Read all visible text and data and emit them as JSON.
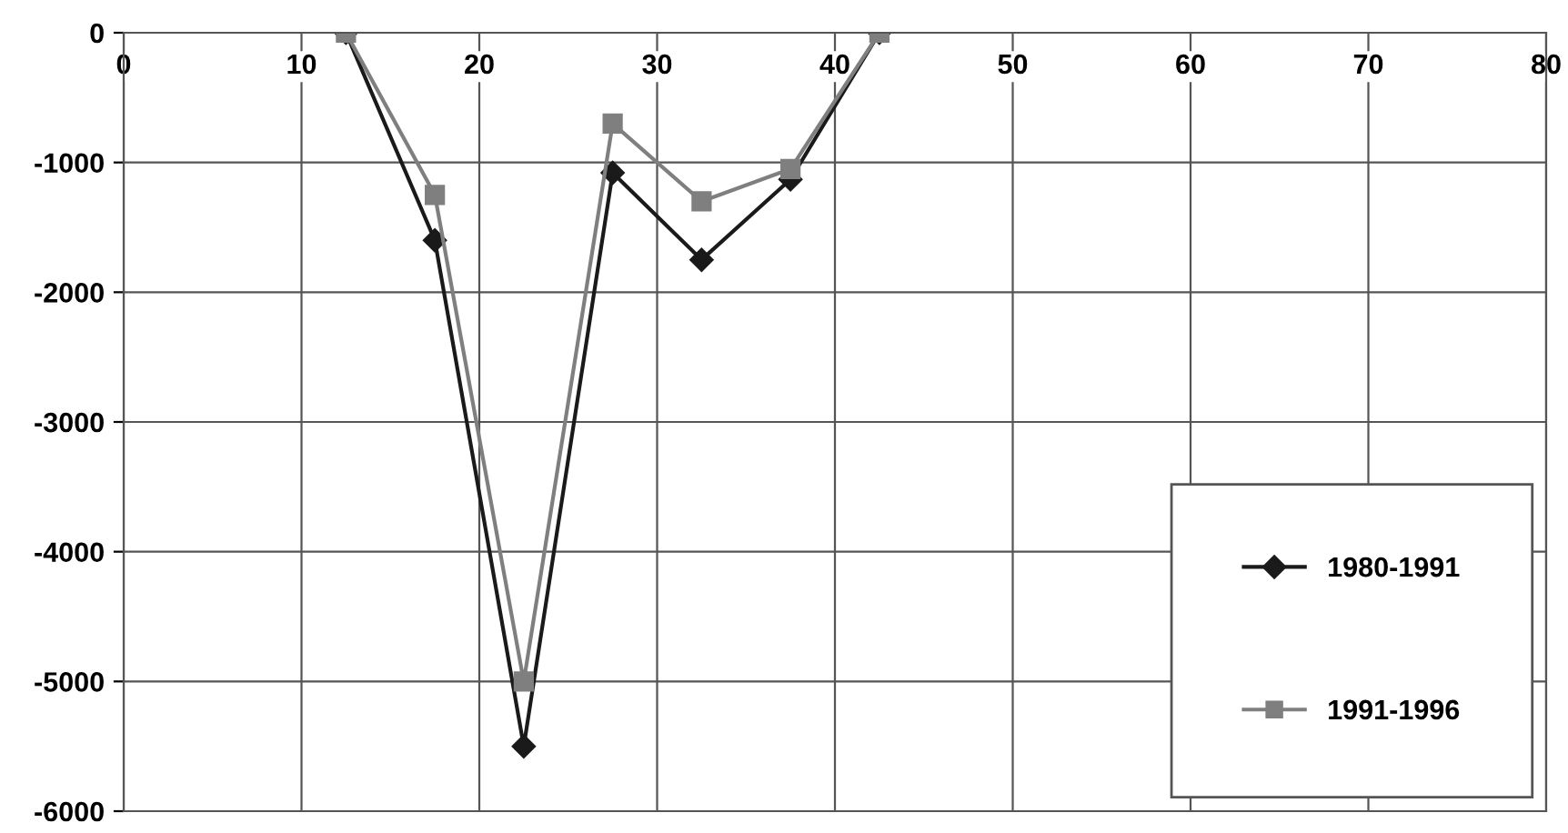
{
  "chart_data": {
    "type": "line",
    "x": [
      12.5,
      17.5,
      22.5,
      27.5,
      32.5,
      37.5,
      42.5
    ],
    "series": [
      {
        "name": "1980-1991",
        "color": "#1a1a1a",
        "marker": "diamond",
        "values": [
          0,
          -1600,
          -5500,
          -1080,
          -1750,
          -1130,
          0
        ]
      },
      {
        "name": "1991-1996",
        "color": "#7f7f7f",
        "marker": "square",
        "values": [
          0,
          -1250,
          -5000,
          -700,
          -1300,
          -1050,
          0
        ]
      }
    ],
    "xlim": [
      0,
      80
    ],
    "xticks": [
      0,
      10,
      20,
      30,
      40,
      50,
      60,
      70,
      80
    ],
    "ylim": [
      -6000,
      0
    ],
    "yticks": [
      -6000,
      -5000,
      -4000,
      -3000,
      -2000,
      -1000,
      0
    ],
    "grid": true,
    "legend": "bottom right",
    "line_style": "solid"
  }
}
